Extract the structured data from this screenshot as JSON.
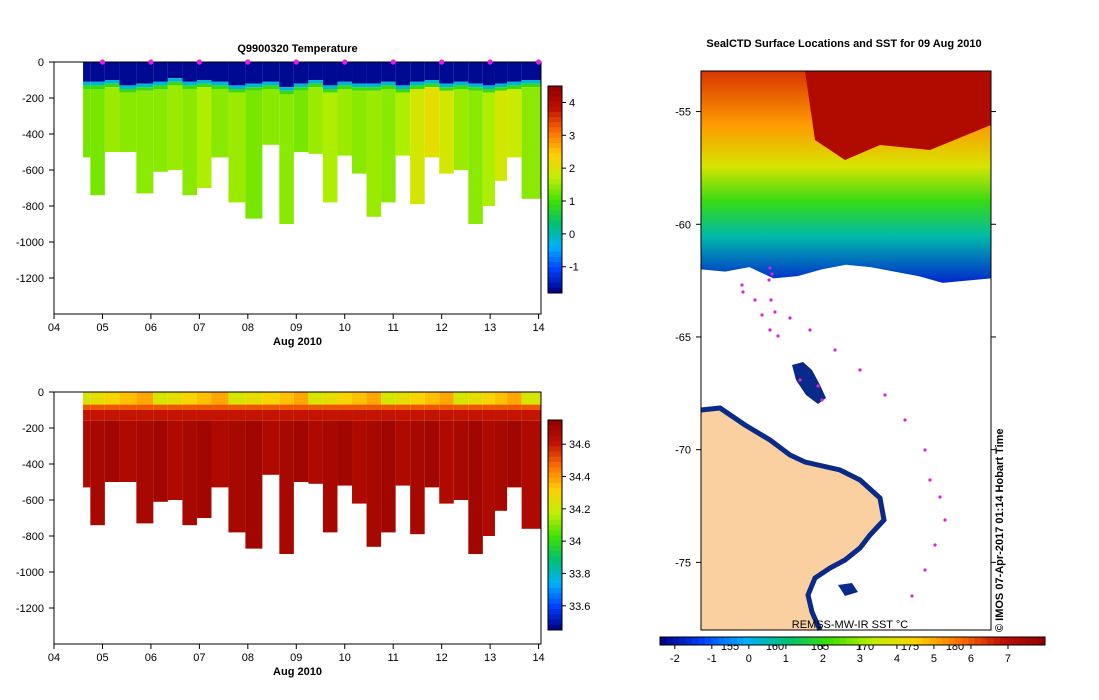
{
  "chart_data": [
    {
      "type": "heatmap",
      "title": "Q9900320  Temperature",
      "xlabel": "Aug 2010",
      "ylabel": "",
      "x_ticks": [
        "04",
        "05",
        "06",
        "07",
        "08",
        "09",
        "10",
        "11",
        "12",
        "13",
        "14"
      ],
      "y_ticks": [
        0,
        -200,
        -400,
        -600,
        -800,
        -1000,
        -1200
      ],
      "xlim": [
        4.0,
        14.05
      ],
      "ylim": [
        -1400,
        0
      ],
      "colorbar_ticks": [
        4,
        3,
        2,
        1,
        0,
        -1
      ],
      "colorbar_range": [
        -1.8,
        4.5
      ],
      "colorbar_colors": [
        "#000080",
        "#0040ff",
        "#00b0ff",
        "#00c070",
        "#40e000",
        "#c0f000",
        "#ffd000",
        "#ff7000",
        "#c01000",
        "#900000"
      ],
      "profile_days": [
        4.6,
        4.9,
        5.2,
        5.5,
        5.9,
        6.2,
        6.5,
        6.8,
        7.1,
        7.4,
        7.8,
        8.1,
        8.5,
        8.8,
        9.1,
        9.4,
        9.7,
        10.0,
        10.3,
        10.6,
        10.9,
        11.2,
        11.5,
        11.8,
        12.1,
        12.4,
        12.7,
        13.0,
        13.2,
        13.5,
        13.8
      ],
      "profile_max_depth": [
        -530,
        -740,
        -500,
        -500,
        -730,
        -610,
        -600,
        -740,
        -700,
        -530,
        -780,
        -870,
        -460,
        -900,
        -500,
        -510,
        -780,
        -520,
        -620,
        -860,
        -780,
        -520,
        -790,
        -530,
        -620,
        -600,
        -900,
        -800,
        -660,
        -530,
        -760
      ],
      "surface_layer_depth": [
        -110,
        -110,
        -100,
        -130,
        -120,
        -110,
        -90,
        -110,
        -100,
        -110,
        -130,
        -120,
        -110,
        -140,
        -120,
        -100,
        -130,
        -110,
        -120,
        -120,
        -110,
        -130,
        -110,
        -100,
        -120,
        -110,
        -120,
        -130,
        -120,
        -110,
        -100
      ],
      "deep_temperature_c": [
        1.3,
        1.3,
        1.5,
        1.4,
        1.4,
        1.4,
        1.5,
        1.4,
        1.6,
        1.4,
        1.5,
        1.3,
        1.4,
        1.4,
        1.3,
        1.5,
        1.6,
        1.5,
        1.4,
        1.5,
        1.4,
        1.6,
        1.9,
        2.1,
        1.9,
        1.5,
        1.4,
        1.6,
        1.9,
        1.8,
        1.4
      ],
      "surface_temperature_c": -1.7,
      "marker_days": [
        5,
        6,
        7,
        8,
        9,
        10,
        11,
        12,
        13,
        14
      ]
    },
    {
      "type": "heatmap",
      "title": "",
      "xlabel": "Aug 2010",
      "ylabel": "",
      "x_ticks": [
        "04",
        "05",
        "06",
        "07",
        "08",
        "09",
        "10",
        "11",
        "12",
        "13",
        "14"
      ],
      "y_ticks": [
        0,
        -200,
        -400,
        -600,
        -800,
        -1000,
        -1200
      ],
      "xlim": [
        4.0,
        14.05
      ],
      "ylim": [
        -1400,
        0
      ],
      "colorbar_ticks": [
        34.6,
        34.4,
        34.2,
        34,
        33.8,
        33.6
      ],
      "colorbar_range": [
        33.45,
        34.75
      ],
      "colorbar_colors": [
        "#000080",
        "#0040ff",
        "#00b0ff",
        "#00c070",
        "#40e000",
        "#c0f000",
        "#ffd000",
        "#ff7000",
        "#c01000",
        "#900000"
      ],
      "profile_days": [
        4.6,
        4.9,
        5.2,
        5.5,
        5.9,
        6.2,
        6.5,
        6.8,
        7.1,
        7.4,
        7.8,
        8.1,
        8.5,
        8.8,
        9.1,
        9.4,
        9.7,
        10.0,
        10.3,
        10.6,
        10.9,
        11.2,
        11.5,
        11.8,
        12.1,
        12.4,
        12.7,
        13.0,
        13.2,
        13.5,
        13.8
      ],
      "profile_max_depth": [
        -530,
        -740,
        -500,
        -500,
        -730,
        -610,
        -600,
        -740,
        -700,
        -530,
        -780,
        -870,
        -460,
        -900,
        -500,
        -510,
        -780,
        -520,
        -620,
        -860,
        -780,
        -520,
        -790,
        -530,
        -620,
        -600,
        -900,
        -800,
        -660,
        -530,
        -760
      ],
      "surface_salinity": 34.3,
      "deep_salinity": 34.68
    },
    {
      "type": "heatmap",
      "title": "SealCTD Surface Locations and SST for 09 Aug 2010",
      "ylabel": "",
      "y_ticks": [
        -55,
        -60,
        -65,
        -70,
        -75
      ],
      "ylim": [
        -78,
        -53.2
      ],
      "colorbar_label": "REMSS-MW-IR SST °C",
      "colorbar_ticks": [
        -2,
        -1,
        0,
        1,
        2,
        3,
        4,
        5,
        6,
        7
      ],
      "colorbar_range": [
        -2.4,
        8.0
      ],
      "colorbar_colors": [
        "#000080",
        "#0040ff",
        "#00b0ff",
        "#00c070",
        "#40e000",
        "#c0f000",
        "#ffd000",
        "#ff7000",
        "#c01000",
        "#900000"
      ],
      "longitude_ticks": [
        "155",
        "160",
        "165",
        "170",
        "175",
        "180"
      ],
      "credit": "© IMOS 07-Apr-2017 01:14 Hobart Time"
    }
  ]
}
